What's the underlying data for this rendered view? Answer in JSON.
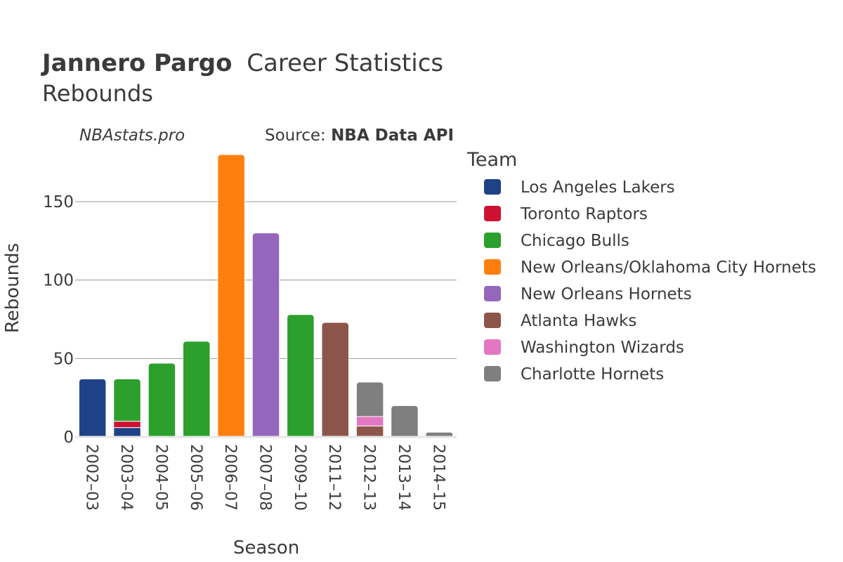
{
  "header": {
    "player": "Jannero Pargo",
    "title_rest": "Career Statistics",
    "subtitle": "Rebounds",
    "site": "NBAstats.pro",
    "source_label": "Source: ",
    "source_name": "NBA Data API"
  },
  "legend": {
    "title": "Team"
  },
  "chart_data": {
    "type": "bar",
    "stacked": true,
    "title": "Jannero Pargo Career Statistics",
    "subtitle": "Rebounds",
    "xlabel": "Season",
    "ylabel": "Rebounds",
    "ylim": [
      0,
      180
    ],
    "yticks": [
      0,
      50,
      100,
      150
    ],
    "grid": true,
    "legend_position": "right",
    "categories": [
      "2002–03",
      "2003–04",
      "2004–05",
      "2005–06",
      "2006–07",
      "2007–08",
      "2009–10",
      "2011–12",
      "2012–13",
      "2013–14",
      "2014–15"
    ],
    "series": [
      {
        "name": "Los Angeles Lakers",
        "color": "#1f4287",
        "values": [
          37,
          6,
          0,
          0,
          0,
          0,
          0,
          0,
          0,
          0,
          0
        ]
      },
      {
        "name": "Toronto Raptors",
        "color": "#ce1130",
        "values": [
          0,
          4,
          0,
          0,
          0,
          0,
          0,
          0,
          0,
          0,
          0
        ]
      },
      {
        "name": "Chicago Bulls",
        "color": "#2ca02c",
        "values": [
          0,
          27,
          47,
          61,
          0,
          0,
          78,
          0,
          0,
          0,
          0
        ]
      },
      {
        "name": "New Orleans/Oklahoma City Hornets",
        "color": "#ff7f0e",
        "values": [
          0,
          0,
          0,
          0,
          180,
          0,
          0,
          0,
          0,
          0,
          0
        ]
      },
      {
        "name": "New Orleans Hornets",
        "color": "#9467bd",
        "values": [
          0,
          0,
          0,
          0,
          0,
          130,
          0,
          0,
          0,
          0,
          0
        ]
      },
      {
        "name": "Atlanta Hawks",
        "color": "#8c564b",
        "values": [
          0,
          0,
          0,
          0,
          0,
          0,
          0,
          73,
          7,
          0,
          0
        ]
      },
      {
        "name": "Washington Wizards",
        "color": "#e377c2",
        "values": [
          0,
          0,
          0,
          0,
          0,
          0,
          0,
          0,
          6,
          0,
          0
        ]
      },
      {
        "name": "Charlotte Hornets",
        "color": "#7f7f7f",
        "values": [
          0,
          0,
          0,
          0,
          0,
          0,
          0,
          0,
          22,
          20,
          3
        ]
      }
    ]
  }
}
